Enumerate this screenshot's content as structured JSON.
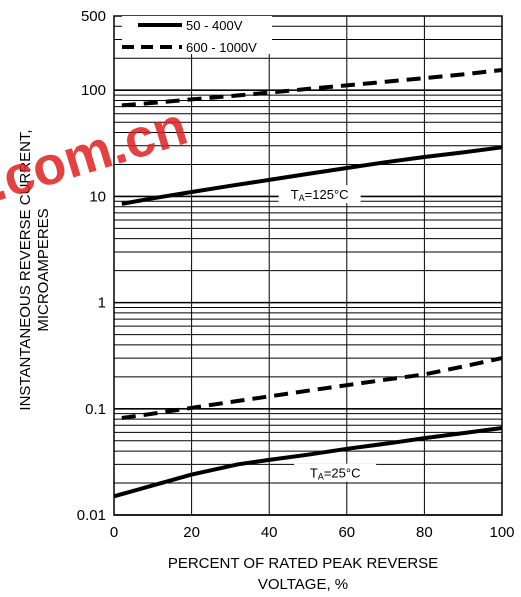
{
  "chart_data": {
    "type": "line",
    "xlabel_lines": [
      "PERCENT OF RATED PEAK REVERSE",
      "VOLTAGE, %"
    ],
    "ylabel_lines": [
      "INSTANTANEOUS REVERSE CURRENT,",
      "MICROAMPERES"
    ],
    "xlim": [
      0,
      100
    ],
    "ylim": [
      0.01,
      500
    ],
    "yscale": "log",
    "x_ticks": [
      0,
      20,
      40,
      60,
      80,
      100
    ],
    "y_ticks": [
      {
        "value": 0.01,
        "label": "0.01"
      },
      {
        "value": 0.1,
        "label": "0.1"
      },
      {
        "value": 1,
        "label": "1"
      },
      {
        "value": 10,
        "label": "10"
      },
      {
        "value": 100,
        "label": "100"
      },
      {
        "value": 500,
        "label": "500"
      }
    ],
    "grid": {
      "vertical": true,
      "horizontal_log_minor": true
    },
    "legend": {
      "placement": "top-left"
    },
    "series": [
      {
        "name": "50 - 400V",
        "style": "solid",
        "x": [
          2,
          10,
          20,
          30,
          40,
          50,
          60,
          70,
          80,
          90,
          100
        ],
        "y": [
          8.5,
          9.6,
          11.0,
          12.6,
          14.3,
          16.3,
          18.5,
          21.0,
          23.5,
          26.0,
          29.0
        ]
      },
      {
        "name": "600 - 1000V",
        "style": "dashed",
        "x": [
          2,
          10,
          20,
          30,
          40,
          50,
          60,
          70,
          80,
          90,
          100
        ],
        "y": [
          72,
          76,
          82,
          88,
          95,
          103,
          111,
          120,
          130,
          141,
          155
        ]
      },
      {
        "name": "50 - 400V",
        "style": "solid",
        "x": [
          0,
          10,
          20,
          32,
          40,
          50,
          60,
          72,
          80,
          90,
          100
        ],
        "y": [
          0.015,
          0.019,
          0.024,
          0.03,
          0.033,
          0.037,
          0.042,
          0.048,
          0.053,
          0.059,
          0.066
        ]
      },
      {
        "name": "600 - 1000V",
        "style": "dashed",
        "x": [
          2,
          10,
          20,
          30,
          40,
          50,
          60,
          70,
          80,
          90,
          100
        ],
        "y": [
          0.082,
          0.09,
          0.102,
          0.116,
          0.131,
          0.148,
          0.167,
          0.188,
          0.211,
          0.25,
          0.3
        ]
      }
    ],
    "annotations": [
      {
        "main": "T",
        "sub": "A",
        "rest": "=125°C",
        "x": 53,
        "y": 10.5
      },
      {
        "main": "T",
        "sub": "A",
        "rest": "=25°C",
        "x": 57,
        "y": 0.025
      }
    ],
    "watermark": ".com.cn"
  }
}
